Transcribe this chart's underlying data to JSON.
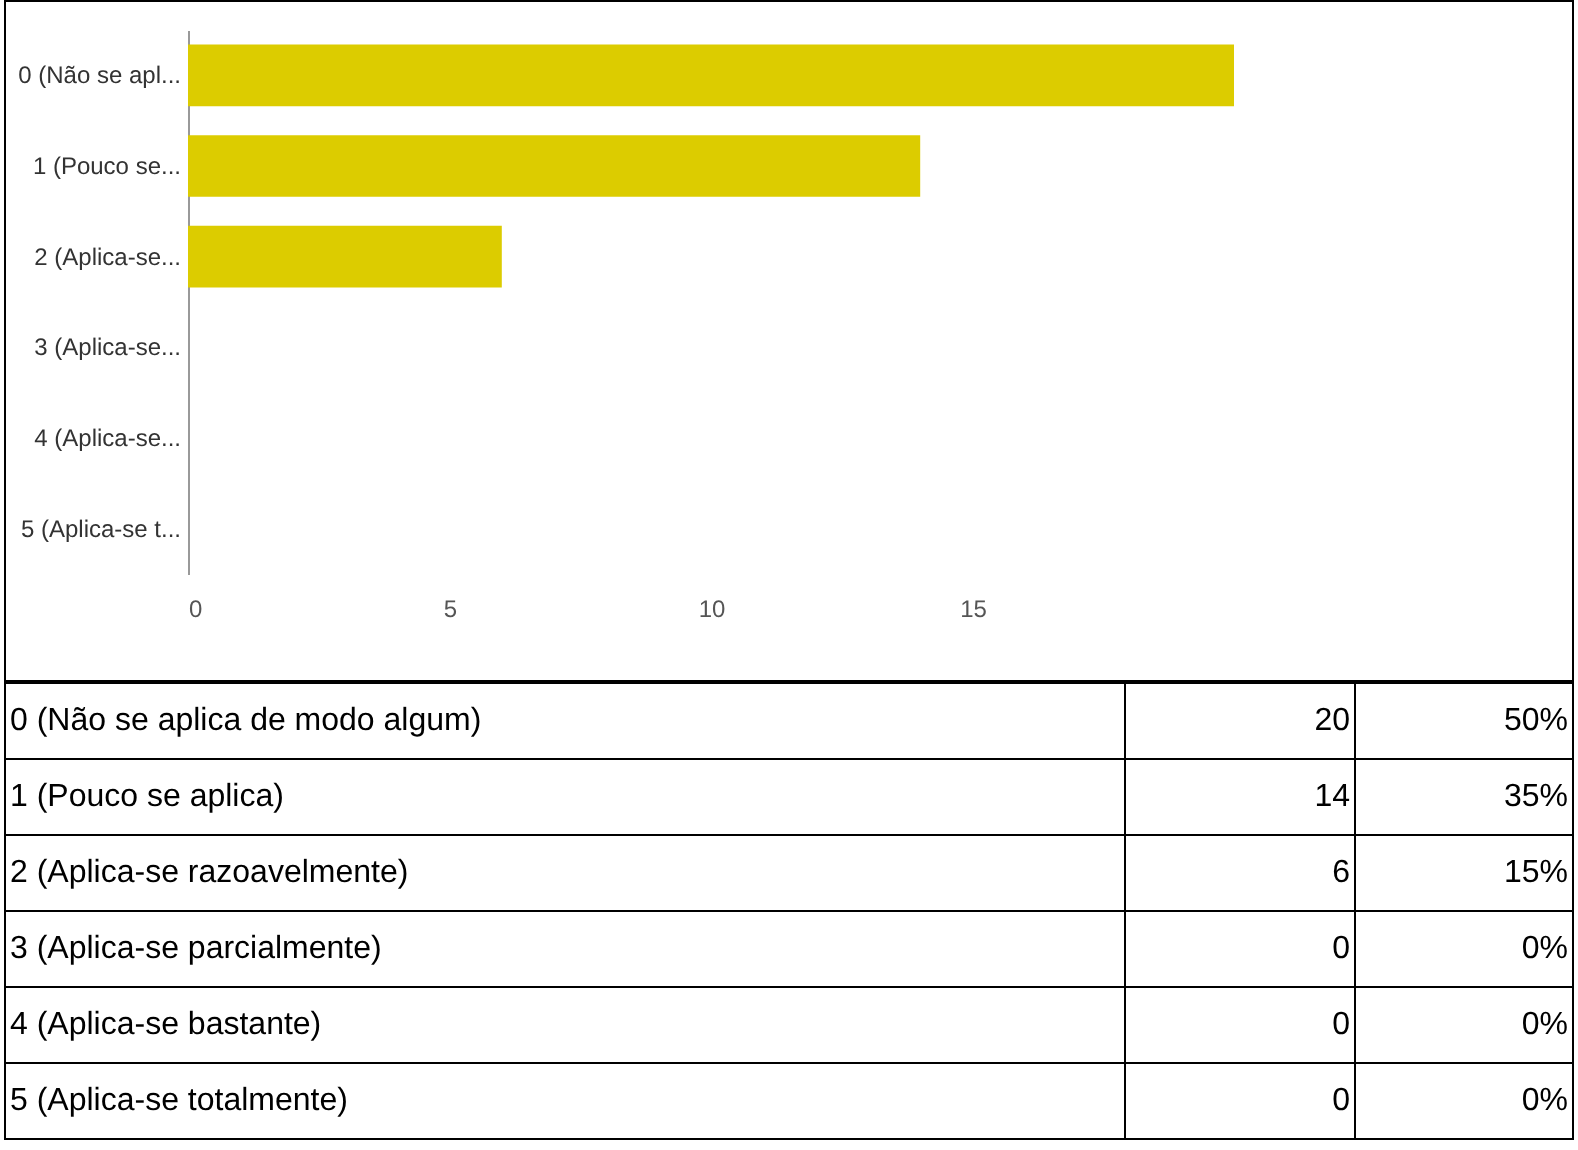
{
  "chart_data": {
    "type": "bar",
    "orientation": "horizontal",
    "categories": [
      "0 (Não se apl...",
      "1 (Pouco se...",
      "2 (Aplica-se...",
      "3 (Aplica-se...",
      "4 (Aplica-se...",
      "5 (Aplica-se t..."
    ],
    "values": [
      20,
      14,
      6,
      0,
      0,
      0
    ],
    "color": "#dccc00",
    "xlim": [
      0,
      20
    ],
    "xticks": [
      0,
      5,
      10,
      15
    ],
    "grid": false,
    "annotations": [
      "0 (Não se aplica de modo algum)",
      "20",
      "50%",
      "1 (Pouco se aplica)",
      "14",
      "35%",
      "2 (Aplica-se razoavelmente)",
      "6",
      "15%",
      "3 (Aplica-se parcialmente)",
      "0",
      "0%",
      "4 (Aplica-se bastante)",
      "0",
      "0%",
      "5 (Aplica-se totalmente)",
      "0",
      "0%"
    ]
  }
}
